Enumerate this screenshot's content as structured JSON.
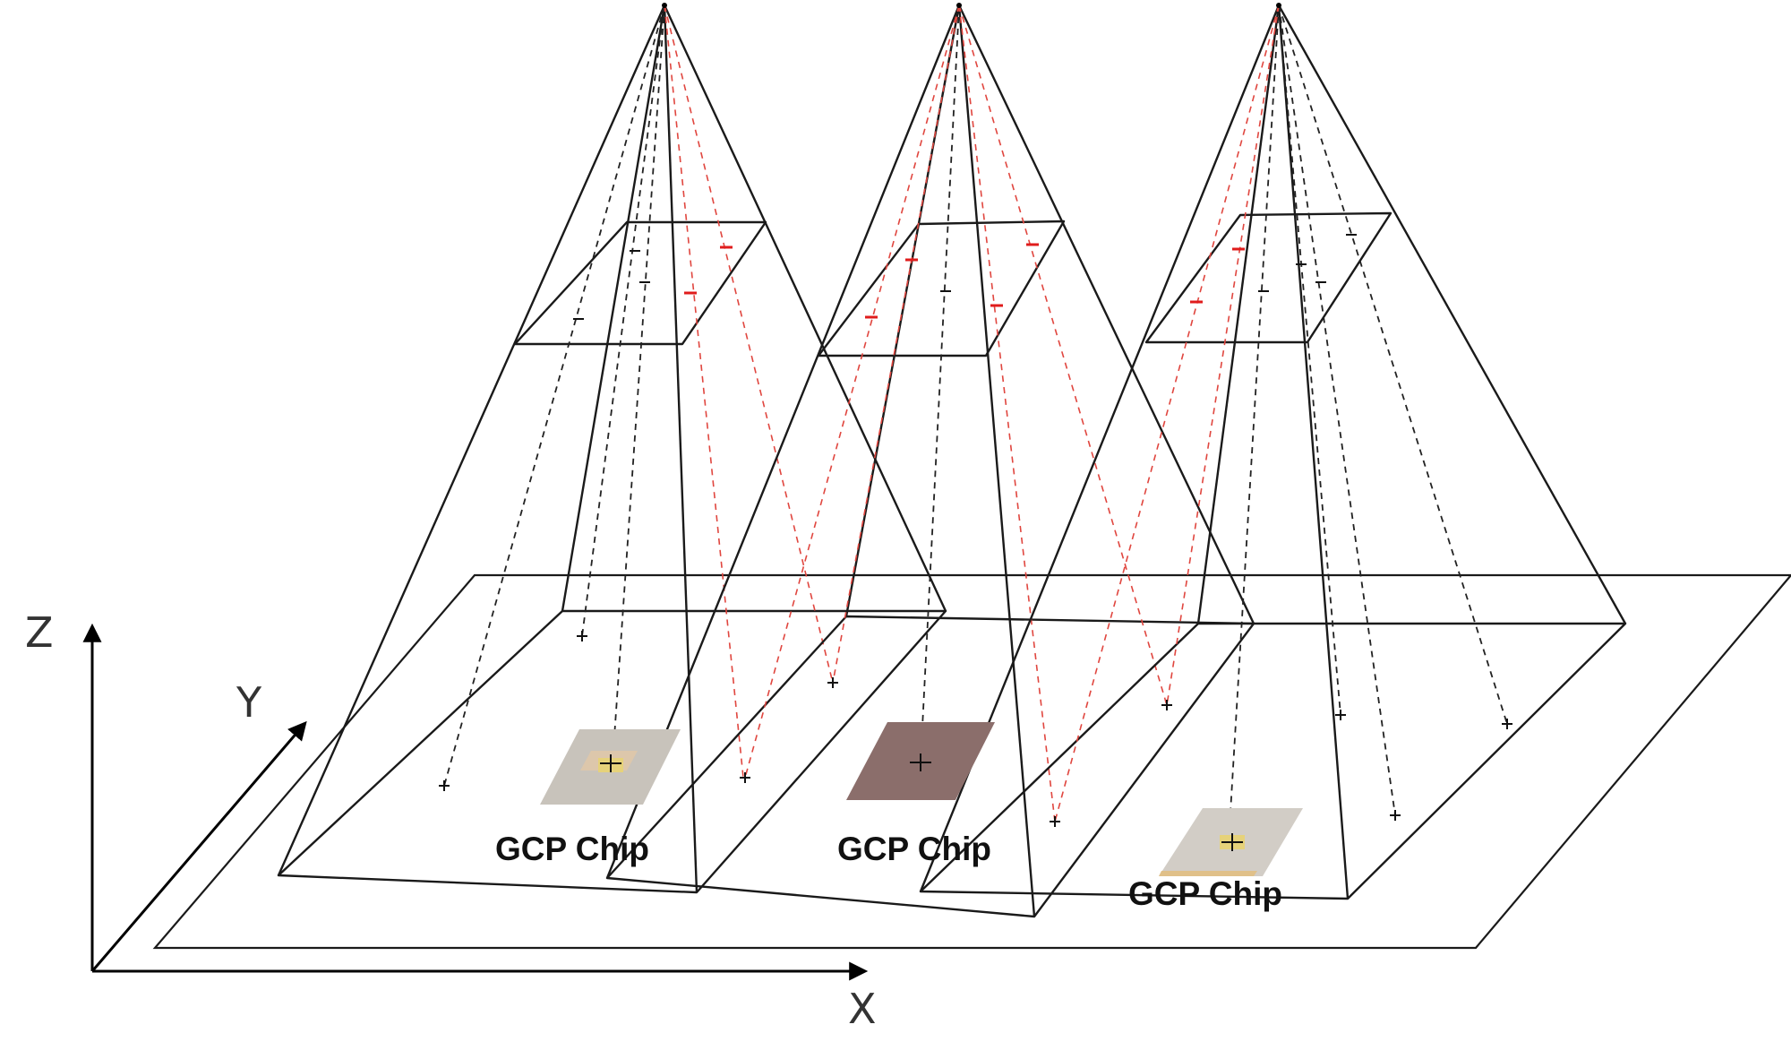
{
  "axes": {
    "x_label": "X",
    "y_label": "Y",
    "z_label": "Z"
  },
  "gcp_chips": [
    {
      "label": "GCP Chip",
      "color": "#c8c3bb"
    },
    {
      "label": "GCP Chip",
      "color": "#8b6e6b"
    },
    {
      "label": "GCP Chip",
      "color": "#d2cdc6"
    }
  ],
  "colors": {
    "line": "#1a1a1a",
    "red_ray": "#e0463f",
    "red_marker": "#e01c1c",
    "chip_highlight": "#e6d27a"
  },
  "camera_count": 3
}
